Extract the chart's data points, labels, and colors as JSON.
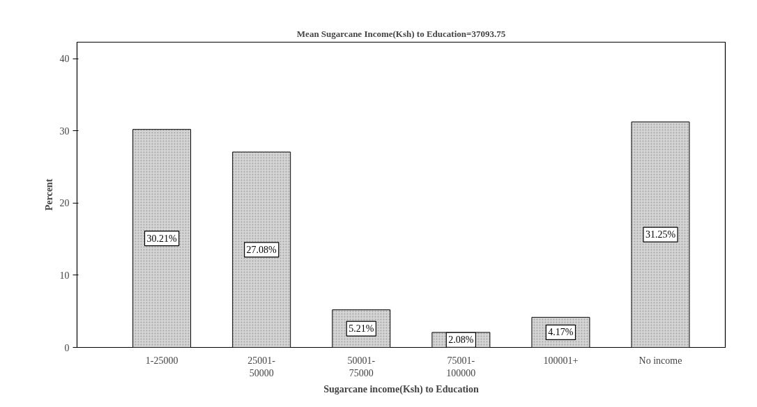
{
  "chart_data": {
    "type": "bar",
    "title": "Mean Sugarcane Income(Ksh) to Education=37093.75",
    "xlabel": "Sugarcane income(Ksh) to Education",
    "ylabel": "Percent",
    "categories": [
      "1-25000",
      "25001-\n50000",
      "50001-\n75000",
      "75001-\n100000",
      "100001+",
      "No income"
    ],
    "values": [
      30.21,
      27.08,
      5.21,
      2.08,
      4.17,
      31.25
    ],
    "value_labels": [
      "30.21%",
      "27.08%",
      "5.21%",
      "2.08%",
      "4.17%",
      "31.25%"
    ],
    "color": "#d4d4d4",
    "ylim": [
      0,
      42.3
    ],
    "yticks": [
      0,
      10,
      20,
      30,
      40
    ],
    "grid": false
  }
}
